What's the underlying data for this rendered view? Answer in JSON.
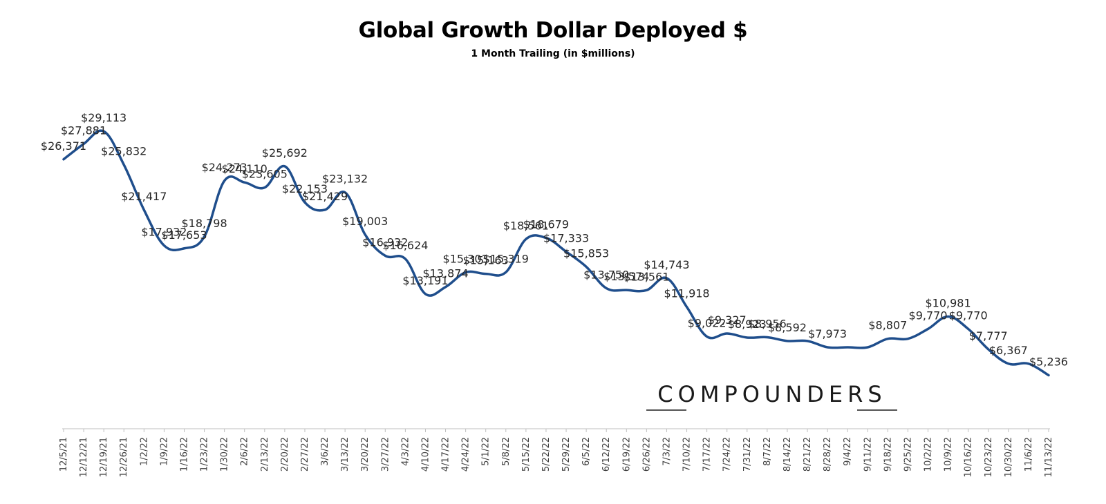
{
  "chart_data": {
    "type": "line",
    "title": "Global Growth Dollar Deployed $",
    "subtitle": "1 Month Trailing (in $millions)",
    "xlabel": "",
    "ylabel": "",
    "ylim": [
      0,
      32000
    ],
    "grid": false,
    "watermark": "COMPOUNDERS",
    "line_color": "#1f4e8c",
    "categories": [
      "12/5/21",
      "12/12/21",
      "12/19/21",
      "12/26/21",
      "1/2/22",
      "1/9/22",
      "1/16/22",
      "1/23/22",
      "1/30/22",
      "2/6/22",
      "2/13/22",
      "2/20/22",
      "2/27/22",
      "3/6/22",
      "3/13/22",
      "3/20/22",
      "3/27/22",
      "4/3/22",
      "4/10/22",
      "4/17/22",
      "4/24/22",
      "5/1/22",
      "5/8/22",
      "5/15/22",
      "5/22/22",
      "5/29/22",
      "6/5/22",
      "6/12/22",
      "6/19/22",
      "6/26/22",
      "7/3/22",
      "7/10/22",
      "7/17/22",
      "7/24/22",
      "7/31/22",
      "8/7/22",
      "8/14/22",
      "8/21/22",
      "8/28/22",
      "9/4/22",
      "9/11/22",
      "9/18/22",
      "9/25/22",
      "10/2/22",
      "10/9/22",
      "10/16/22",
      "10/23/22",
      "10/30/22",
      "11/6/22",
      "11/13/22"
    ],
    "series": [
      {
        "values": [
          26371,
          27881,
          29113,
          25832,
          21417,
          17932,
          17653,
          18798,
          24273,
          24110,
          23605,
          25692,
          22153,
          21429,
          23132,
          19003,
          16932,
          16624,
          13191,
          13874,
          15303,
          15163,
          15319,
          18561,
          18679,
          17333,
          15853,
          13750,
          13574,
          13561,
          14743,
          11918,
          9022,
          9327,
          8923,
          8956,
          8592,
          8592,
          7973,
          7973,
          7973,
          8807,
          8807,
          9770,
          10981,
          9770,
          7777,
          6367,
          6367,
          5236
        ],
        "labels": [
          "$26,371",
          "$27,881",
          "$29,113",
          "$25,832",
          "$21,417",
          "$17,932",
          "$17,653",
          "$18,798",
          "$24,273",
          "$24,110",
          "$23,605",
          "$25,692",
          "$22,153",
          "$21,429",
          "$23,132",
          "$19,003",
          "$16,932",
          "$16,624",
          "$13,191",
          "$13,874",
          "$15,303",
          "$15,163",
          "$15,319",
          "$18,561",
          "$18,679",
          "$17,333",
          "$15,853",
          "$13,750",
          "$13,574",
          "$13,561",
          "$14,743",
          "$11,918",
          "$9,022",
          "$9,327",
          "$8,923",
          "$8,956",
          "$8,592",
          "",
          "$7,973",
          "",
          "",
          "$8,807",
          "",
          "$9,770",
          "$10,981",
          "$9,770",
          "$7,777",
          "$6,367",
          "",
          "$5,236"
        ]
      }
    ]
  }
}
